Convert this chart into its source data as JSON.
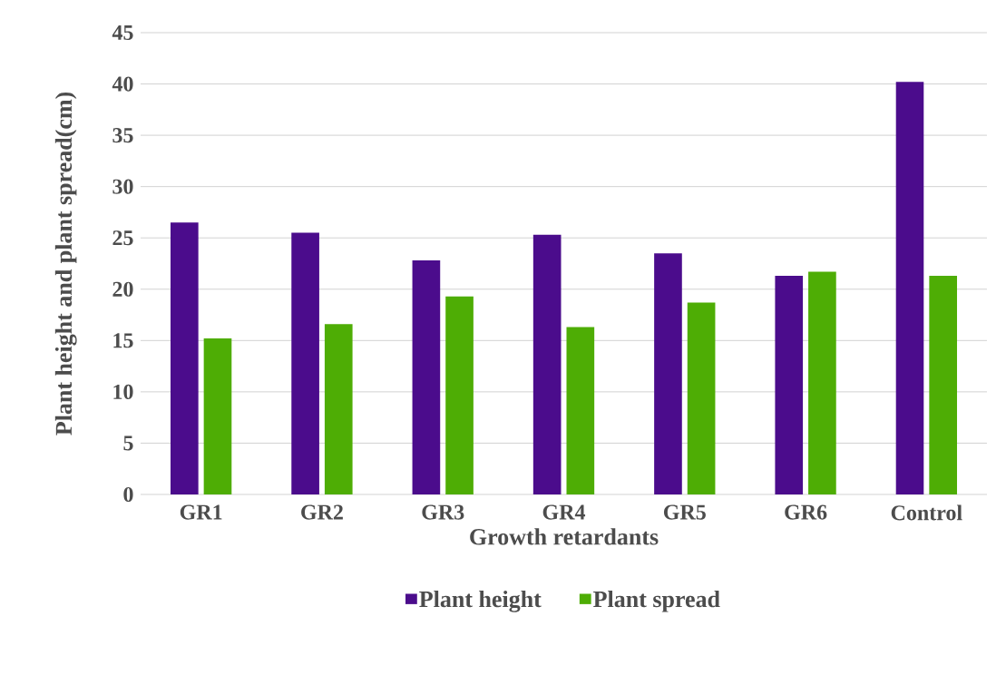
{
  "chart_data": {
    "type": "bar",
    "xlabel": "Growth retardants",
    "ylabel": "Plant height and plant spread(cm)",
    "categories": [
      "GR1",
      "GR2",
      "GR3",
      "GR4",
      "GR5",
      "GR6",
      "Control"
    ],
    "series": [
      {
        "name": "Plant height",
        "color": "#4b0c8c",
        "values": [
          26.5,
          25.5,
          22.8,
          25.3,
          23.5,
          21.3,
          40.2
        ]
      },
      {
        "name": "Plant spread",
        "color": "#4ead05",
        "values": [
          15.2,
          16.6,
          19.3,
          16.3,
          18.7,
          21.7,
          21.3
        ]
      }
    ],
    "ylim": [
      0,
      45
    ],
    "yticks": [
      0,
      5,
      10,
      15,
      20,
      25,
      30,
      35,
      40,
      45
    ],
    "grid": "y",
    "legend": "bottom"
  }
}
